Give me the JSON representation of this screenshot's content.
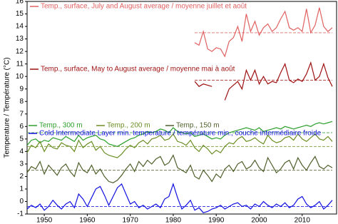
{
  "chart_data": {
    "type": "line",
    "ylabel": "Temperature / Température (°C)",
    "x": [
      1946,
      1947,
      1948,
      1949,
      1950,
      1951,
      1952,
      1953,
      1954,
      1955,
      1956,
      1957,
      1958,
      1959,
      1960,
      1961,
      1962,
      1963,
      1964,
      1965,
      1966,
      1967,
      1968,
      1969,
      1970,
      1971,
      1972,
      1973,
      1974,
      1975,
      1976,
      1977,
      1978,
      1979,
      1980,
      1981,
      1982,
      1983,
      1984,
      1985,
      1986,
      1987,
      1988,
      1989,
      1990,
      1991,
      1992,
      1993,
      1994,
      1995,
      1996,
      1997,
      1998,
      1999,
      2000,
      2001,
      2002,
      2003,
      2004,
      2005,
      2006,
      2007,
      2008,
      2009,
      2010,
      2011,
      2012,
      2013,
      2014,
      2015,
      2016,
      2017
    ],
    "xlim": [
      1946,
      2018
    ],
    "xticks": [
      1950,
      1960,
      1970,
      1980,
      1990,
      2000,
      2010
    ],
    "ylim": [
      -1,
      16
    ],
    "yticks": [
      -1,
      0,
      1,
      2,
      3,
      4,
      5,
      6,
      7,
      8,
      9,
      10,
      11,
      12,
      13,
      14,
      15,
      16
    ],
    "series": [
      {
        "name": "Temp., surface, July and August average / moyenne juillet et août",
        "color": "#e06060",
        "mean": 13.5,
        "values": [
          null,
          null,
          null,
          null,
          null,
          null,
          null,
          null,
          null,
          null,
          null,
          null,
          null,
          null,
          null,
          null,
          null,
          null,
          null,
          null,
          null,
          null,
          null,
          null,
          null,
          null,
          null,
          null,
          null,
          null,
          null,
          null,
          null,
          null,
          null,
          null,
          null,
          null,
          null,
          12.7,
          12.5,
          13.6,
          12.2,
          12.0,
          12.3,
          12.2,
          11.6,
          12.8,
          13.1,
          14.0,
          12.8,
          15.0,
          13.6,
          14.4,
          13.3,
          13.9,
          14.2,
          13.6,
          13.9,
          14.6,
          15.2,
          13.9,
          13.7,
          13.9,
          13.6,
          15.4,
          13.5,
          14.1,
          15.5,
          14.0,
          13.6,
          13.9
        ]
      },
      {
        "name": "Temp., surface, May to August average / moyenne mai à août",
        "color": "#9e1010",
        "mean": 9.7,
        "values": [
          null,
          null,
          null,
          null,
          null,
          null,
          null,
          null,
          null,
          null,
          null,
          null,
          null,
          null,
          null,
          null,
          null,
          null,
          null,
          null,
          null,
          null,
          null,
          null,
          null,
          null,
          null,
          null,
          null,
          null,
          null,
          null,
          null,
          null,
          null,
          null,
          null,
          null,
          null,
          9.6,
          9.2,
          9.4,
          9.3,
          9.2,
          null,
          null,
          8.1,
          9.0,
          9.3,
          9.6,
          9.0,
          10.5,
          9.7,
          10.5,
          9.4,
          10.0,
          9.4,
          9.6,
          9.5,
          10.3,
          11.0,
          9.7,
          9.5,
          9.8,
          9.6,
          10.2,
          11.1,
          9.7,
          10.0,
          11.0,
          9.9,
          9.2
        ]
      },
      {
        "name": "Temp., 300 m",
        "color": "#2ca02c",
        "mean": 5.5,
        "values": [
          4.5,
          4.9,
          5.0,
          4.7,
          4.9,
          4.8,
          5.1,
          5.0,
          4.9,
          5.2,
          5.0,
          4.8,
          5.3,
          4.9,
          5.1,
          5.2,
          5.3,
          5.0,
          4.9,
          4.6,
          4.5,
          4.4,
          4.6,
          4.8,
          5.0,
          5.1,
          5.3,
          5.4,
          5.6,
          5.5,
          5.6,
          5.8,
          5.7,
          5.5,
          5.9,
          5.6,
          5.5,
          5.4,
          5.5,
          5.2,
          5.3,
          5.4,
          5.2,
          5.0,
          5.1,
          5.0,
          5.3,
          5.5,
          5.6,
          5.7,
          5.8,
          5.9,
          5.8,
          5.7,
          5.9,
          5.6,
          5.7,
          5.8,
          5.9,
          5.8,
          6.0,
          5.9,
          5.8,
          5.9,
          6.0,
          6.1,
          6.0,
          6.2,
          6.3,
          6.2,
          6.3,
          6.4
        ]
      },
      {
        "name": "Temp., 200 m",
        "color": "#6b8e23",
        "mean": 4.4,
        "values": [
          3.9,
          4.5,
          4.3,
          4.8,
          4.0,
          4.6,
          4.3,
          4.2,
          4.7,
          4.5,
          4.4,
          4.0,
          4.9,
          4.3,
          4.6,
          4.8,
          4.1,
          4.4,
          3.9,
          3.7,
          3.6,
          3.5,
          3.8,
          4.2,
          4.5,
          4.3,
          4.7,
          4.9,
          4.6,
          5.0,
          5.1,
          5.3,
          4.9,
          5.0,
          5.4,
          4.8,
          4.7,
          4.5,
          4.9,
          4.3,
          4.0,
          4.5,
          4.2,
          3.8,
          4.1,
          3.9,
          4.4,
          4.7,
          4.6,
          5.0,
          5.2,
          4.8,
          4.9,
          5.1,
          4.8,
          4.6,
          5.3,
          4.9,
          4.7,
          4.8,
          5.1,
          5.2,
          4.9,
          5.4,
          5.0,
          4.8,
          5.1,
          5.4,
          5.0,
          4.9,
          5.2,
          4.8
        ]
      },
      {
        "name": "Temp., 150 m",
        "color": "#4f5f2a",
        "mean": 2.5,
        "values": [
          2.3,
          2.8,
          2.6,
          3.2,
          2.2,
          2.9,
          2.5,
          2.1,
          2.7,
          3.0,
          2.4,
          2.0,
          3.1,
          2.5,
          2.3,
          2.9,
          2.2,
          2.6,
          2.0,
          1.6,
          1.5,
          1.7,
          2.1,
          2.6,
          3.0,
          2.4,
          3.2,
          2.8,
          3.3,
          3.0,
          3.4,
          3.6,
          2.9,
          3.1,
          3.7,
          2.7,
          2.5,
          2.3,
          2.9,
          2.0,
          1.8,
          2.5,
          2.1,
          1.6,
          2.2,
          1.9,
          2.6,
          2.9,
          2.4,
          3.0,
          3.2,
          2.6,
          2.8,
          3.3,
          2.7,
          2.4,
          3.5,
          2.9,
          2.3,
          2.6,
          3.1,
          3.3,
          2.6,
          3.5,
          2.9,
          2.5,
          3.1,
          3.6,
          2.8,
          2.6,
          2.9,
          2.7
        ]
      },
      {
        "name": "Cold Intermediate Layer min. temperature / température min., couche intermédiaire froide",
        "color": "#1010e0",
        "mean": -0.4,
        "values": [
          -0.6,
          -0.3,
          -0.5,
          -0.2,
          -0.7,
          -0.4,
          0.1,
          -0.3,
          -0.6,
          -0.2,
          0.0,
          -0.5,
          0.6,
          0.2,
          -0.4,
          0.3,
          1.0,
          1.2,
          0.5,
          -0.3,
          0.4,
          1.1,
          1.4,
          0.6,
          -0.2,
          0.0,
          -0.5,
          -0.3,
          -0.6,
          -0.4,
          -0.2,
          -0.5,
          0.2,
          0.4,
          1.4,
          0.3,
          -0.6,
          -0.3,
          0.1,
          -0.7,
          -0.5,
          -0.9,
          -0.8,
          -0.6,
          -0.5,
          -0.3,
          -0.6,
          -0.4,
          -0.2,
          -0.1,
          -0.4,
          -0.3,
          -0.6,
          -0.2,
          -0.4,
          0.0,
          -0.3,
          -0.5,
          -0.2,
          -0.4,
          -0.1,
          -0.5,
          -0.3,
          0.2,
          0.4,
          -0.2,
          -0.5,
          -0.3,
          0.0,
          -0.6,
          -0.3,
          0.1
        ]
      }
    ]
  }
}
